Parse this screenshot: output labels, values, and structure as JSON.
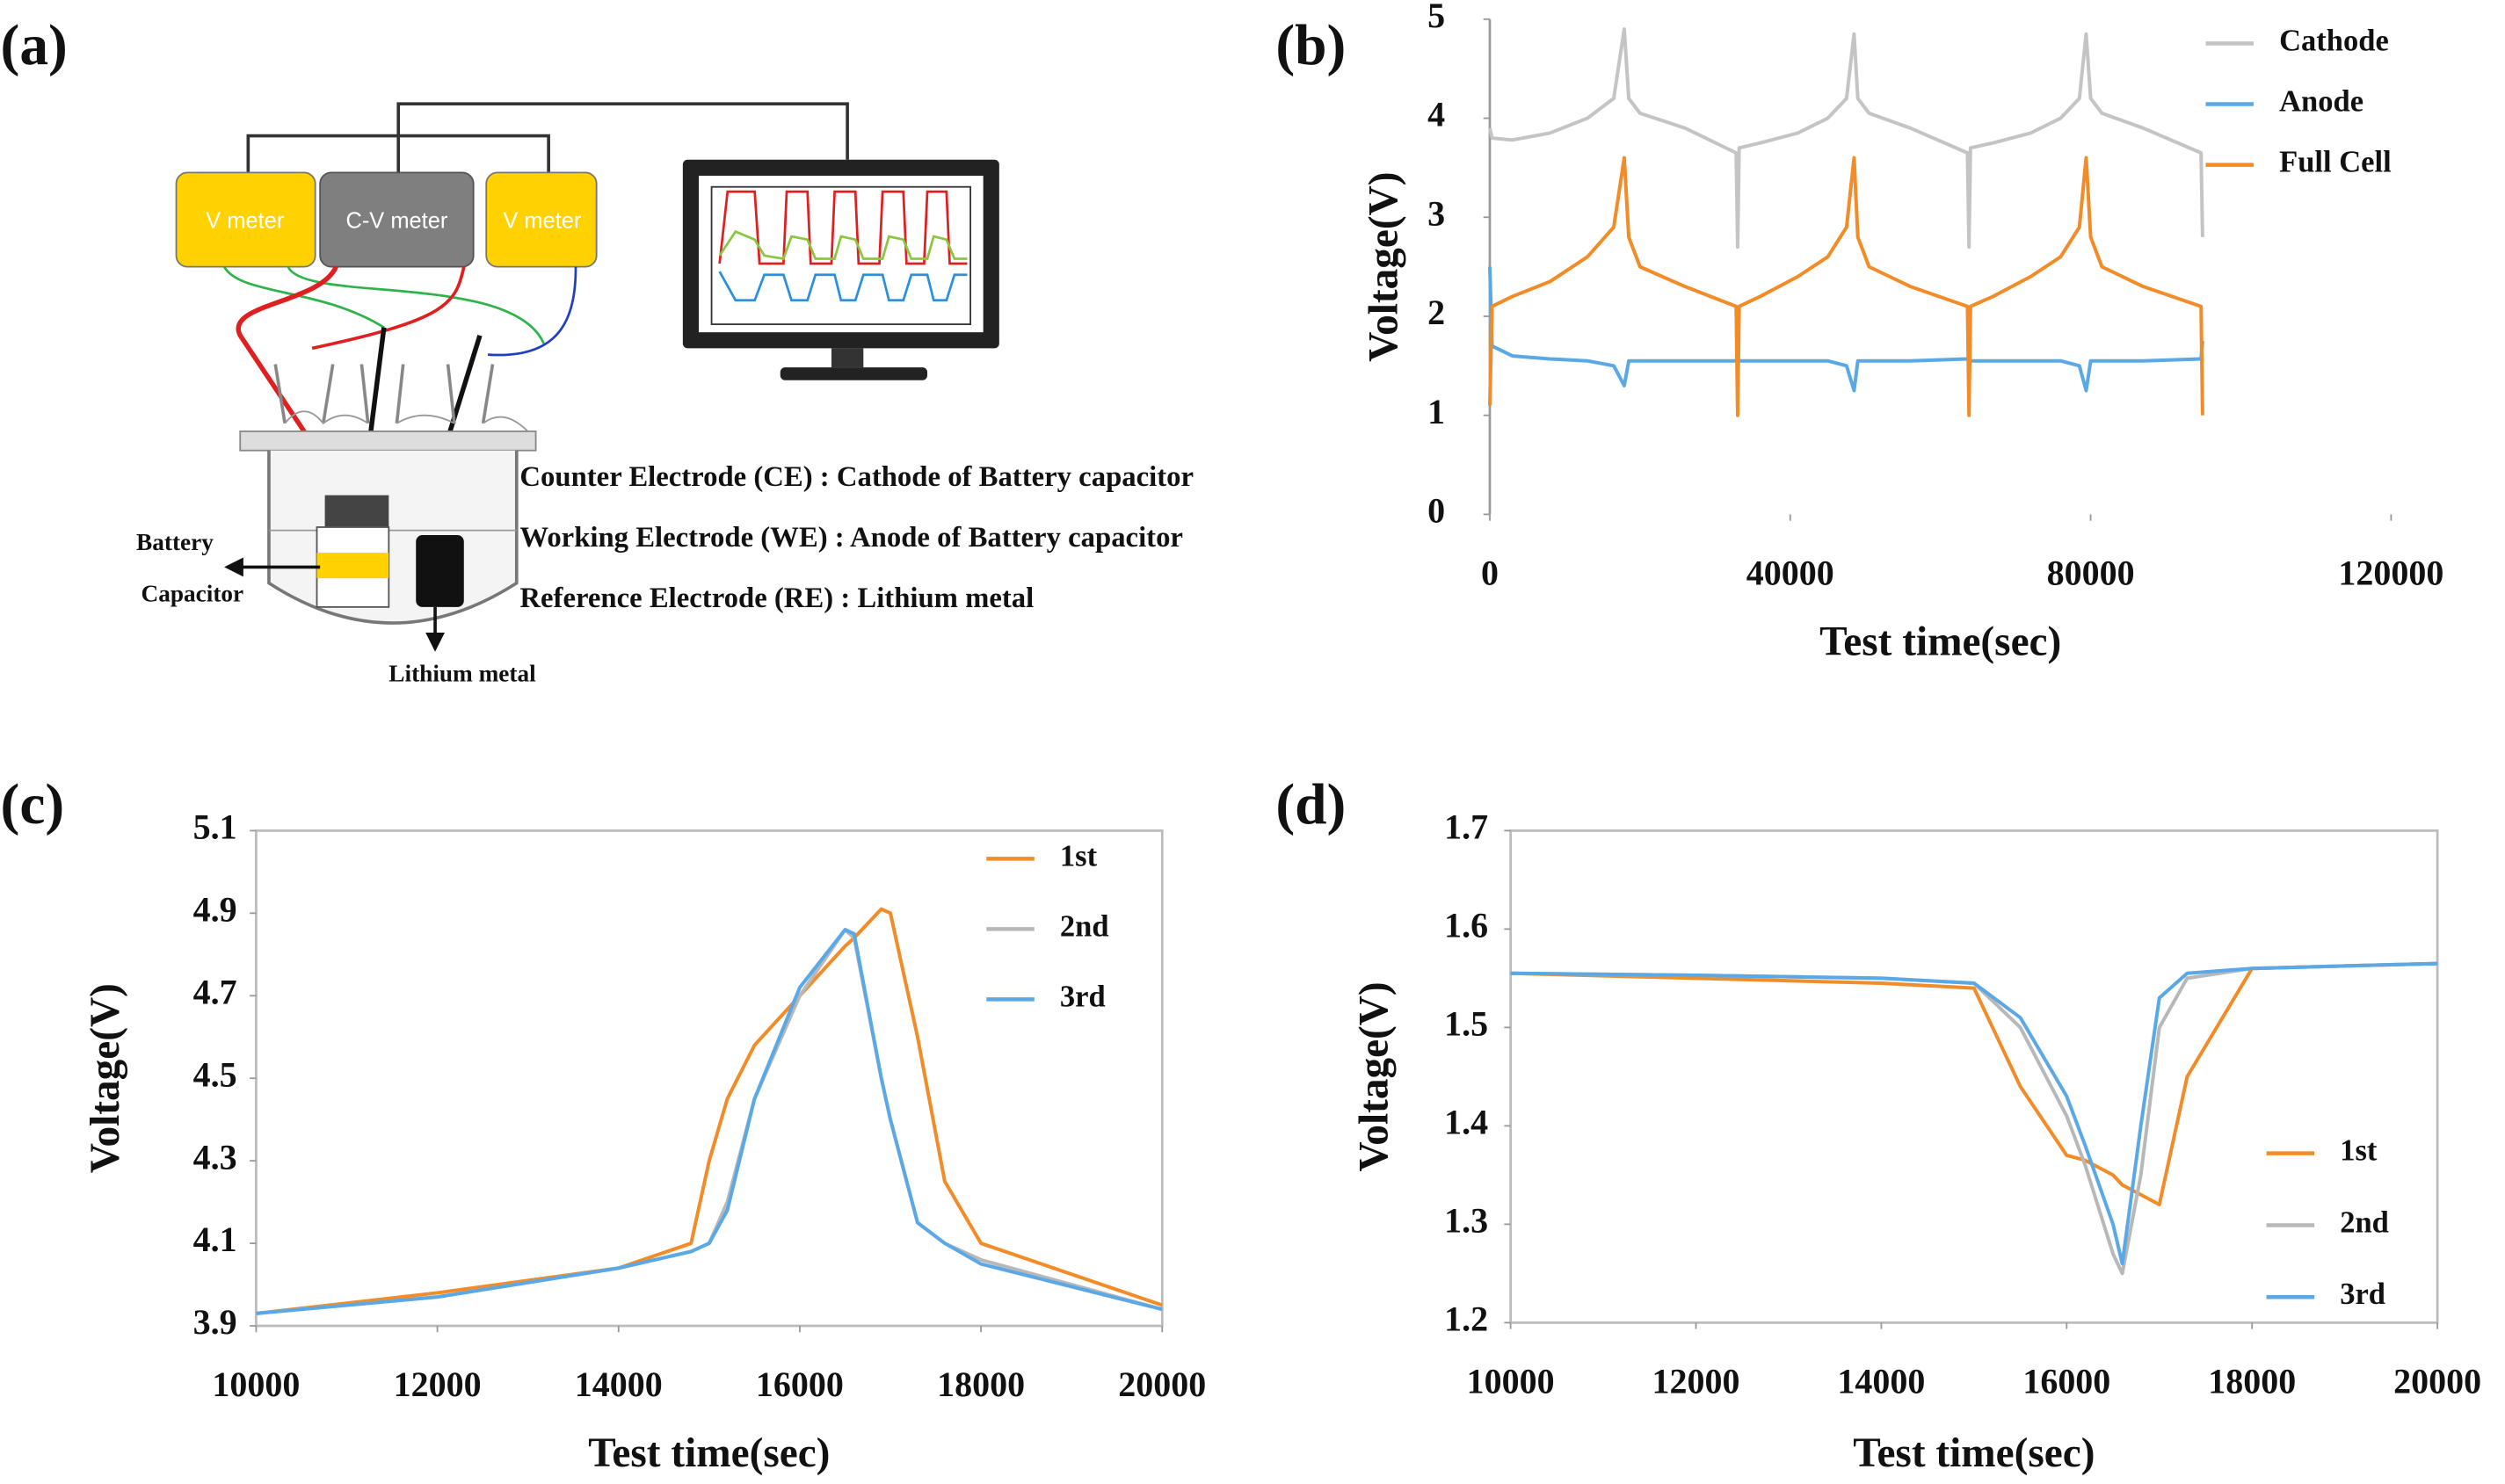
{
  "diagram": {
    "panel_label": "(a)",
    "meters": [
      "V meter",
      "C-V meter",
      "V meter"
    ],
    "electrodes": [
      "Counter Electrode (CE) : Cathode of Battery capacitor",
      "Working Electrode (WE) : Anode of Battery capacitor",
      "Reference Electrode (RE) : Lithium metal"
    ],
    "battery_label": [
      "Battery",
      "Capacitor"
    ],
    "lithium_label": "Lithium metal"
  },
  "chart_data": [
    {
      "type": "line",
      "panel_label": "(b)",
      "xlabel": "Test time(sec)",
      "ylabel": "Voltage(V)",
      "x": [
        0,
        300,
        3000,
        8000,
        13000,
        16500,
        17900,
        18500,
        20000,
        26000,
        32800,
        33000,
        33200,
        36000,
        41000,
        45000,
        47500,
        48500,
        49000,
        50500,
        56000,
        63600,
        63800,
        64000,
        67000,
        72000,
        76000,
        78500,
        79400,
        80000,
        81500,
        87000,
        94700,
        94900
      ],
      "series": [
        {
          "name": "Cathode",
          "color": "#c4c4c4",
          "values": [
            3.9,
            3.8,
            3.78,
            3.85,
            4.0,
            4.2,
            4.9,
            4.2,
            4.05,
            3.9,
            3.65,
            2.7,
            3.7,
            3.75,
            3.85,
            4.0,
            4.2,
            4.85,
            4.2,
            4.05,
            3.9,
            3.65,
            2.7,
            3.7,
            3.75,
            3.85,
            4.0,
            4.2,
            4.85,
            4.2,
            4.05,
            3.9,
            3.65,
            2.8
          ]
        },
        {
          "name": "Anode",
          "color": "#5aa9e6",
          "values": [
            2.5,
            1.7,
            1.6,
            1.57,
            1.55,
            1.5,
            1.3,
            1.55,
            1.55,
            1.55,
            1.55,
            1.6,
            1.55,
            1.55,
            1.55,
            1.55,
            1.5,
            1.25,
            1.55,
            1.55,
            1.55,
            1.57,
            1.6,
            1.55,
            1.55,
            1.55,
            1.55,
            1.5,
            1.25,
            1.55,
            1.55,
            1.55,
            1.57,
            1.75
          ]
        },
        {
          "name": "Full Cell",
          "color": "#f28c28",
          "values": [
            1.1,
            2.1,
            2.2,
            2.35,
            2.6,
            2.9,
            3.6,
            2.8,
            2.5,
            2.3,
            2.1,
            1.0,
            2.1,
            2.2,
            2.4,
            2.6,
            2.9,
            3.6,
            2.8,
            2.5,
            2.3,
            2.1,
            1.0,
            2.1,
            2.2,
            2.4,
            2.6,
            2.9,
            3.6,
            2.8,
            2.5,
            2.3,
            2.1,
            1.0
          ]
        }
      ],
      "xlim": [
        0,
        120000
      ],
      "xticks": [
        0,
        40000,
        80000,
        120000
      ],
      "ylim": [
        0,
        5
      ],
      "yticks": [
        0,
        1,
        2,
        3,
        4,
        5
      ],
      "legend": "upper right",
      "frame": false
    },
    {
      "type": "line",
      "panel_label": "(c)",
      "xlabel": "Test time(sec)",
      "ylabel": "Voltage(V)",
      "x": [
        10000,
        12000,
        14000,
        14800,
        15000,
        15200,
        15500,
        16000,
        16500,
        16600,
        16900,
        17000,
        17300,
        17600,
        18000,
        20000
      ],
      "series": [
        {
          "name": "1st",
          "color": "#f28c28",
          "values": [
            3.93,
            3.98,
            4.04,
            4.1,
            4.3,
            4.45,
            4.58,
            4.7,
            4.82,
            4.84,
            4.91,
            4.9,
            4.6,
            4.25,
            4.1,
            3.95
          ]
        },
        {
          "name": "2nd",
          "color": "#b8b8b8",
          "values": [
            3.93,
            3.97,
            4.04,
            4.08,
            4.1,
            4.2,
            4.45,
            4.7,
            4.86,
            4.84,
            4.5,
            4.4,
            4.15,
            4.1,
            4.06,
            3.94
          ]
        },
        {
          "name": "3rd",
          "color": "#5aa9e6",
          "values": [
            3.93,
            3.97,
            4.04,
            4.08,
            4.1,
            4.18,
            4.45,
            4.72,
            4.86,
            4.85,
            4.5,
            4.4,
            4.15,
            4.1,
            4.05,
            3.94
          ]
        }
      ],
      "xlim": [
        10000,
        20000
      ],
      "xticks": [
        10000,
        12000,
        14000,
        16000,
        18000,
        20000
      ],
      "ylim": [
        3.9,
        5.1
      ],
      "yticks": [
        3.9,
        4.1,
        4.3,
        4.5,
        4.7,
        4.9,
        5.1
      ],
      "legend": "upper right",
      "frame": true
    },
    {
      "type": "line",
      "panel_label": "(d)",
      "xlabel": "Test time(sec)",
      "ylabel": "Voltage(V)",
      "x": [
        10000,
        12000,
        14000,
        15000,
        15500,
        16000,
        16200,
        16500,
        16600,
        16800,
        17000,
        17300,
        18000,
        20000
      ],
      "series": [
        {
          "name": "1st",
          "color": "#f28c28",
          "values": [
            1.555,
            1.55,
            1.545,
            1.54,
            1.44,
            1.37,
            1.365,
            1.35,
            1.34,
            1.33,
            1.32,
            1.45,
            1.56,
            1.565
          ]
        },
        {
          "name": "2nd",
          "color": "#b8b8b8",
          "values": [
            1.555,
            1.553,
            1.55,
            1.545,
            1.5,
            1.41,
            1.36,
            1.27,
            1.25,
            1.35,
            1.5,
            1.55,
            1.56,
            1.565
          ]
        },
        {
          "name": "3rd",
          "color": "#5aa9e6",
          "values": [
            1.555,
            1.553,
            1.55,
            1.545,
            1.51,
            1.43,
            1.38,
            1.3,
            1.26,
            1.4,
            1.53,
            1.555,
            1.56,
            1.565
          ]
        }
      ],
      "xlim": [
        10000,
        20000
      ],
      "xticks": [
        10000,
        12000,
        14000,
        16000,
        18000,
        20000
      ],
      "ylim": [
        1.2,
        1.7
      ],
      "yticks": [
        1.2,
        1.3,
        1.4,
        1.5,
        1.6,
        1.7
      ],
      "legend": "lower right",
      "frame": true
    }
  ]
}
